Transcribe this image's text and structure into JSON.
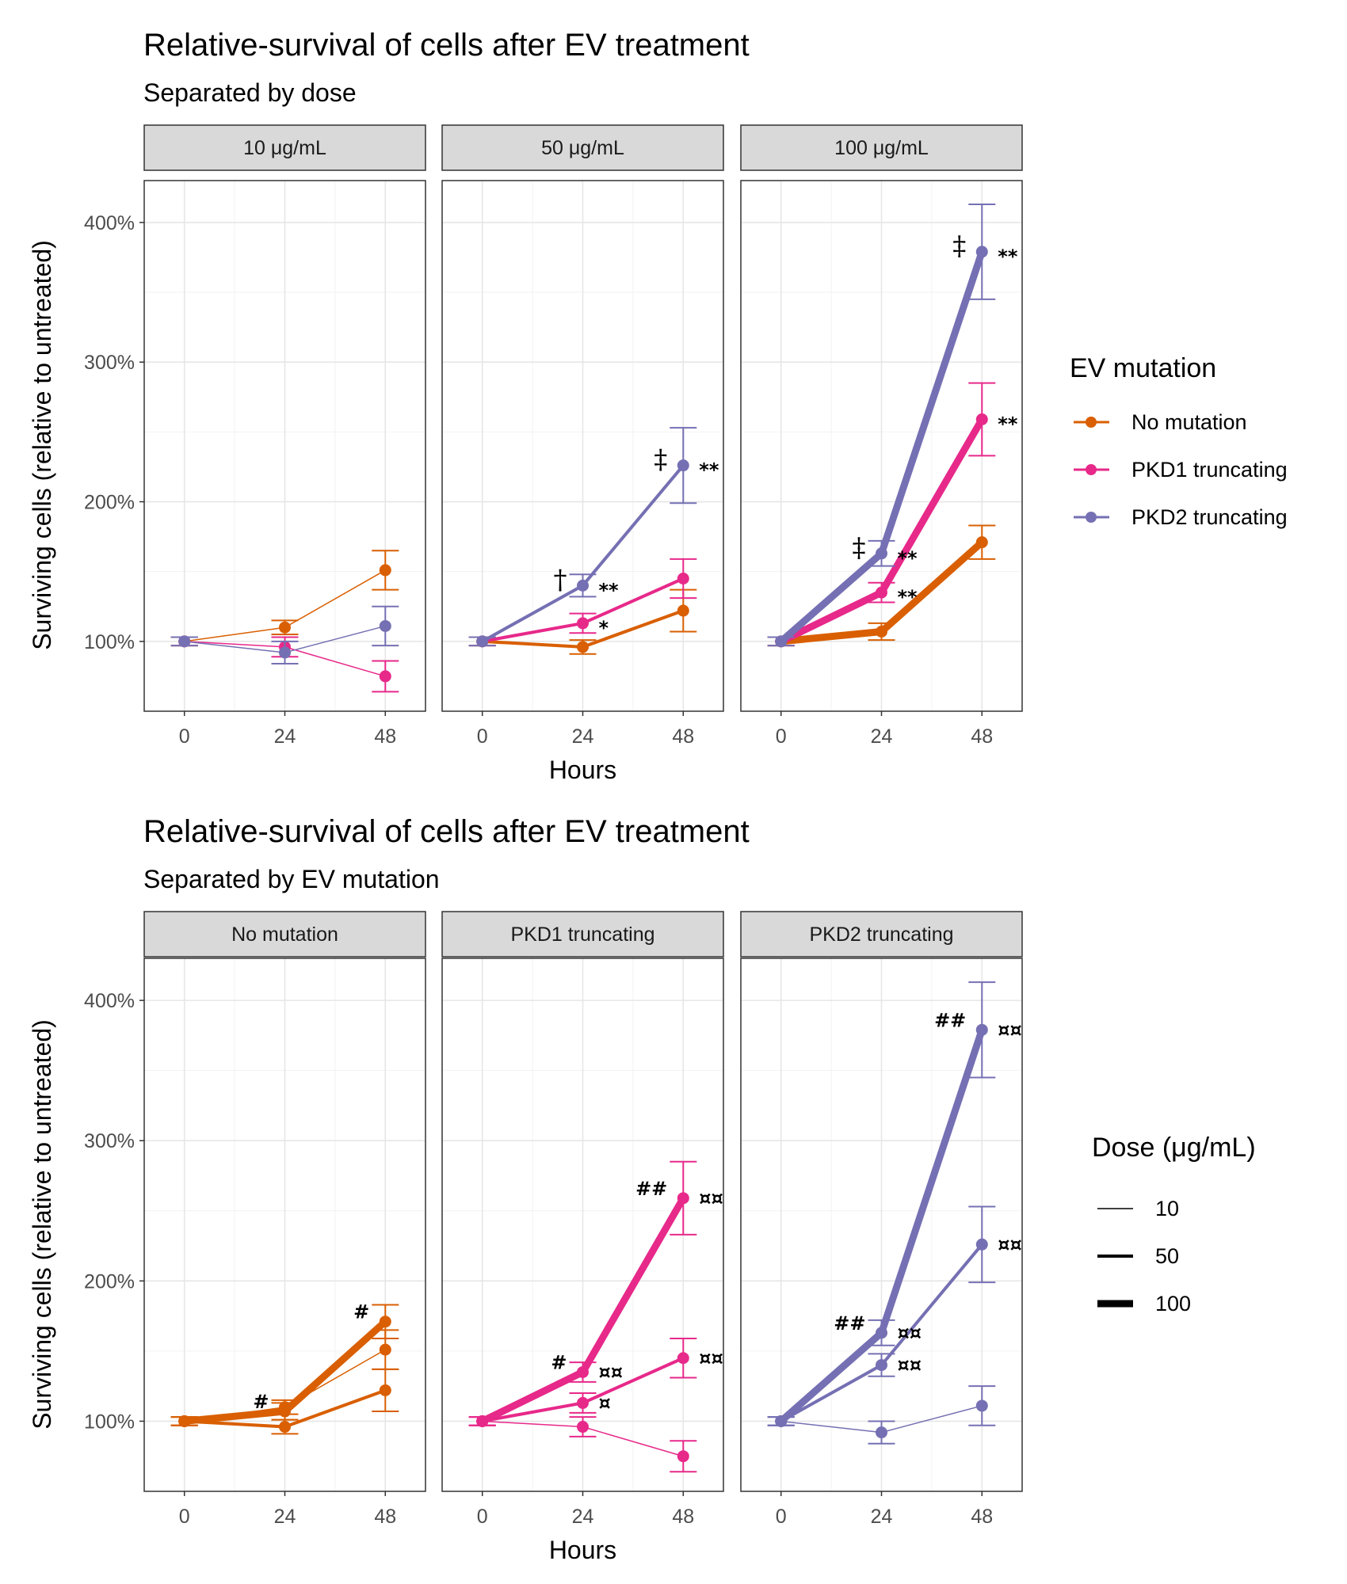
{
  "chart_data": [
    {
      "type": "line",
      "title": "Relative-survival of cells after EV treatment",
      "subtitle": "Separated by dose",
      "xlabel": "Hours",
      "ylabel": "Surviving cells (relative to untreated)",
      "x_ticks": [
        "0",
        "24",
        "48"
      ],
      "y_ticks": [
        "100%",
        "200%",
        "300%",
        "400%"
      ],
      "ylim": [
        0.5,
        4.3
      ],
      "x": [
        0,
        24,
        48
      ],
      "legend": {
        "title": "EV mutation",
        "position": "right",
        "items": [
          "No mutation",
          "PKD1 truncating",
          "PKD2 truncating"
        ]
      },
      "panels": [
        {
          "label": "10 μg/mL",
          "series": [
            {
              "name": "No mutation",
              "values": [
                1.0,
                1.1,
                1.51
              ],
              "error": [
                0.03,
                0.05,
                0.14
              ],
              "width": "10",
              "annotations": [
                "",
                "",
                ""
              ]
            },
            {
              "name": "PKD1 truncating",
              "values": [
                1.0,
                0.96,
                0.75
              ],
              "error": [
                0.03,
                0.07,
                0.11
              ],
              "width": "10",
              "annotations": [
                "",
                "",
                ""
              ]
            },
            {
              "name": "PKD2 truncating",
              "values": [
                1.0,
                0.92,
                1.11
              ],
              "error": [
                0.03,
                0.08,
                0.14
              ],
              "width": "10",
              "annotations": [
                "",
                "",
                ""
              ]
            }
          ]
        },
        {
          "label": "50 μg/mL",
          "series": [
            {
              "name": "No mutation",
              "values": [
                1.0,
                0.96,
                1.22
              ],
              "error": [
                0.03,
                0.05,
                0.15
              ],
              "width": "50",
              "annotations": [
                "",
                "",
                ""
              ]
            },
            {
              "name": "PKD1 truncating",
              "values": [
                1.0,
                1.13,
                1.45
              ],
              "error": [
                0.03,
                0.07,
                0.14
              ],
              "width": "50",
              "annotations": [
                "",
                "*",
                ""
              ]
            },
            {
              "name": "PKD2 truncating",
              "values": [
                1.0,
                1.4,
                2.26
              ],
              "error": [
                0.03,
                0.08,
                0.27
              ],
              "width": "50",
              "annotations": [
                "",
                "**",
                "**"
              ],
              "pre_annotations": [
                "",
                "†",
                "‡"
              ]
            }
          ]
        },
        {
          "label": "100 μg/mL",
          "series": [
            {
              "name": "No mutation",
              "values": [
                1.0,
                1.07,
                1.71
              ],
              "error": [
                0.03,
                0.06,
                0.12
              ],
              "width": "100",
              "annotations": [
                "",
                "",
                ""
              ]
            },
            {
              "name": "PKD1 truncating",
              "values": [
                1.0,
                1.35,
                2.59
              ],
              "error": [
                0.03,
                0.07,
                0.26
              ],
              "width": "100",
              "annotations": [
                "",
                "**",
                "**"
              ]
            },
            {
              "name": "PKD2 truncating",
              "values": [
                1.0,
                1.63,
                3.79
              ],
              "error": [
                0.03,
                0.09,
                0.34
              ],
              "width": "100",
              "annotations": [
                "",
                "**",
                "**"
              ],
              "pre_annotations": [
                "",
                "‡",
                "‡"
              ]
            }
          ]
        }
      ]
    },
    {
      "type": "line",
      "title": "Relative-survival of cells after EV treatment",
      "subtitle": "Separated by EV mutation",
      "xlabel": "Hours",
      "ylabel": "Surviving cells (relative to untreated)",
      "x_ticks": [
        "0",
        "24",
        "48"
      ],
      "y_ticks": [
        "100%",
        "200%",
        "300%",
        "400%"
      ],
      "ylim": [
        0.5,
        4.3
      ],
      "x": [
        0,
        24,
        48
      ],
      "legend": {
        "title": "Dose (μg/mL)",
        "position": "right",
        "items": [
          "10",
          "50",
          "100"
        ]
      },
      "panels": [
        {
          "label": "No mutation",
          "series": [
            {
              "name": "10",
              "values": [
                1.0,
                1.1,
                1.51
              ],
              "error": [
                0.03,
                0.05,
                0.14
              ],
              "annotations": [
                "",
                "",
                ""
              ]
            },
            {
              "name": "50",
              "values": [
                1.0,
                0.96,
                1.22
              ],
              "error": [
                0.03,
                0.05,
                0.15
              ],
              "annotations": [
                "",
                "",
                ""
              ]
            },
            {
              "name": "100",
              "values": [
                1.0,
                1.07,
                1.71
              ],
              "error": [
                0.03,
                0.06,
                0.12
              ],
              "annotations": [
                "",
                "",
                ""
              ],
              "pre_annotations": [
                "",
                "#",
                "#"
              ]
            }
          ]
        },
        {
          "label": "PKD1 truncating",
          "series": [
            {
              "name": "10",
              "values": [
                1.0,
                0.96,
                0.75
              ],
              "error": [
                0.03,
                0.07,
                0.11
              ],
              "annotations": [
                "",
                "",
                ""
              ]
            },
            {
              "name": "50",
              "values": [
                1.0,
                1.13,
                1.45
              ],
              "error": [
                0.03,
                0.07,
                0.14
              ],
              "annotations": [
                "",
                "¤",
                "¤¤"
              ]
            },
            {
              "name": "100",
              "values": [
                1.0,
                1.35,
                2.59
              ],
              "error": [
                0.03,
                0.07,
                0.26
              ],
              "annotations": [
                "",
                "¤¤",
                "¤¤"
              ],
              "pre_annotations": [
                "",
                "#",
                "##"
              ]
            }
          ]
        },
        {
          "label": "PKD2 truncating",
          "series": [
            {
              "name": "10",
              "values": [
                1.0,
                0.92,
                1.11
              ],
              "error": [
                0.03,
                0.08,
                0.14
              ],
              "annotations": [
                "",
                "",
                ""
              ]
            },
            {
              "name": "50",
              "values": [
                1.0,
                1.4,
                2.26
              ],
              "error": [
                0.03,
                0.08,
                0.27
              ],
              "annotations": [
                "",
                "¤¤",
                "¤¤"
              ]
            },
            {
              "name": "100",
              "values": [
                1.0,
                1.63,
                3.79
              ],
              "error": [
                0.03,
                0.09,
                0.34
              ],
              "annotations": [
                "",
                "¤¤",
                "¤¤"
              ],
              "pre_annotations": [
                "",
                "##",
                "##"
              ]
            }
          ]
        }
      ]
    }
  ],
  "colors": {
    "No mutation": "#d95f02",
    "PKD1 truncating": "#e7298a",
    "PKD2 truncating": "#7570b3"
  }
}
